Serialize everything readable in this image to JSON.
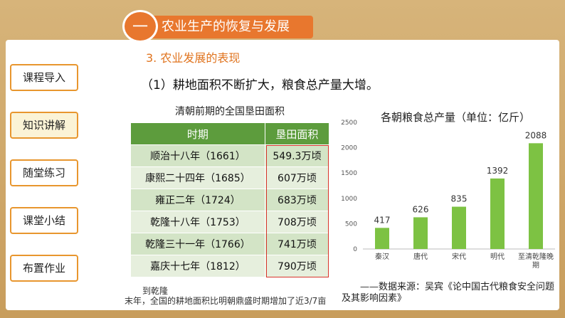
{
  "header": {
    "number": "一",
    "title": "农业生产的恢复与发展"
  },
  "nav": [
    "课程导入",
    "知识讲解",
    "随堂练习",
    "课堂小结",
    "布置作业"
  ],
  "active_nav": 1,
  "section": "3. 农业发展的表现",
  "point": "（1）耕地面积不断扩大，粮食总产量大增。",
  "table": {
    "title": "清朝前期的全国垦田面积",
    "columns": [
      "时期",
      "垦田面积"
    ],
    "rows": [
      [
        "顺治十八年（1661）",
        "549.3万顷"
      ],
      [
        "康熙二十四年（1685）",
        "607万顷"
      ],
      [
        "雍正二年（1724）",
        "683万顷"
      ],
      [
        "乾隆十八年（1753）",
        "708万顷"
      ],
      [
        "乾隆三十一年（1766）",
        "741万顷"
      ],
      [
        "嘉庆十七年（1812）",
        "790万顷"
      ]
    ]
  },
  "chart_data": {
    "type": "bar",
    "title": "各朝粮食总产量（单位：亿斤）",
    "categories": [
      "秦汉",
      "唐代",
      "宋代",
      "明代",
      "至清乾隆晚期"
    ],
    "values": [
      417,
      626,
      835,
      1392,
      2088
    ],
    "color": "#7dc243",
    "ylim": [
      0,
      2500
    ],
    "yticks": [
      0,
      500,
      1000,
      1500,
      2000,
      2500
    ],
    "grid": false
  },
  "source": "——数据来源：吴宾《论中国古代粮食安全问题及其影响因素》",
  "note": {
    "line1": "到乾隆",
    "line2": "末年，全国的耕地面积比明朝鼎盛时期增加了近3/7亩"
  }
}
